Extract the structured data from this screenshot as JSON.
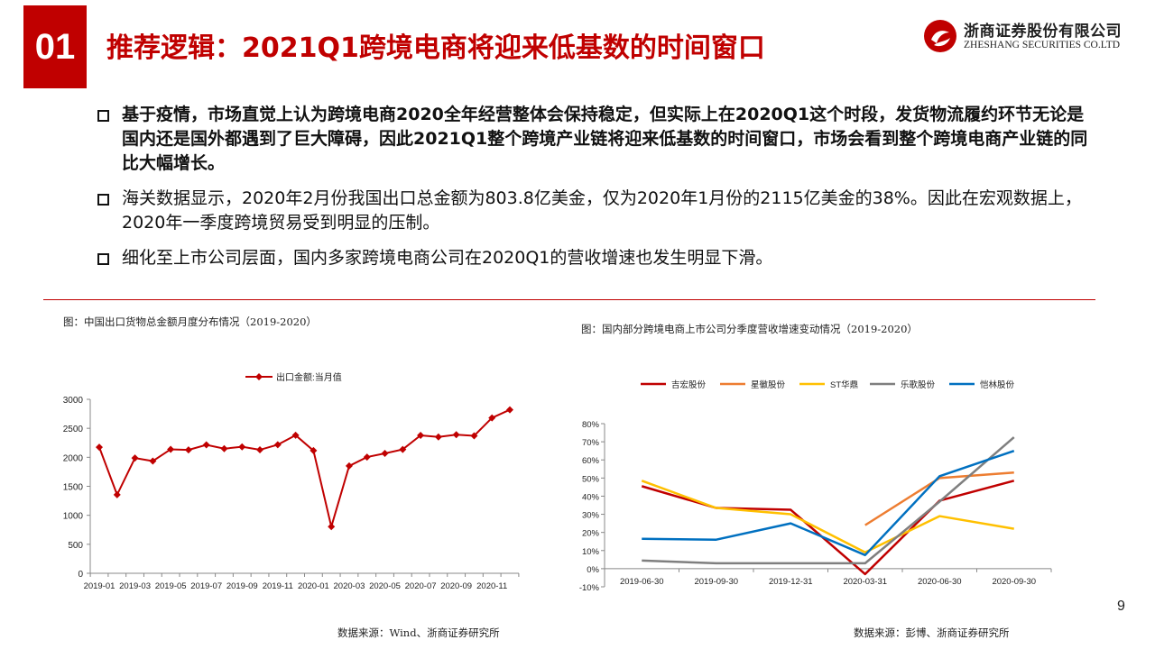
{
  "header": {
    "section_number": "01",
    "title": "推荐逻辑：2021Q1跨境电商将迎来低基数的时间窗口",
    "logo_cn": "浙商证券股份有限公司",
    "logo_en": "ZHESHANG SECURITIES CO.LTD",
    "brand_color": "#c00000"
  },
  "bullets": [
    {
      "text": "基于疫情，市场直觉上认为跨境电商2020全年经营整体会保持稳定，但实际上在2020Q1这个时段，发货物流履约环节无论是国内还是国外都遇到了巨大障碍，因此2021Q1整个跨境产业链将迎来低基数的时间窗口，市场会看到整个跨境电商产业链的同比大幅增长。",
      "bold": true
    },
    {
      "text": "海关数据显示，2020年2月份我国出口总金额为803.8亿美金，仅为2020年1月份的2115亿美金的38%。因此在宏观数据上，2020年一季度跨境贸易受到明显的压制。",
      "bold": false
    },
    {
      "text": "细化至上市公司层面，国内多家跨境电商公司在2020Q1的营收增速也发生明显下滑。",
      "bold": false
    }
  ],
  "figures": {
    "left_title": "图：中国出口货物总金额月度分布情况（2019-2020）",
    "left_source": "数据来源：Wind、浙商证券研究所",
    "right_title": "图：国内部分跨境电商上市公司分季度营收增速变动情况（2019-2020）",
    "right_source": "数据来源：彭博、浙商证券研究所"
  },
  "page_number": "9",
  "chart_data": [
    {
      "type": "line",
      "legend_position": "top",
      "grid": false,
      "x": [
        "2019-01",
        "2019-02",
        "2019-03",
        "2019-04",
        "2019-05",
        "2019-06",
        "2019-07",
        "2019-08",
        "2019-09",
        "2019-10",
        "2019-11",
        "2019-12",
        "2020-01",
        "2020-02",
        "2020-03",
        "2020-04",
        "2020-05",
        "2020-06",
        "2020-07",
        "2020-08",
        "2020-09",
        "2020-10",
        "2020-11",
        "2020-12"
      ],
      "x_tick_labels": [
        "2019-01",
        "2019-03",
        "2019-05",
        "2019-07",
        "2019-09",
        "2019-11",
        "2020-01",
        "2020-03",
        "2020-05",
        "2020-07",
        "2020-09",
        "2020-11"
      ],
      "y_ticks": [
        "0",
        "500",
        "1000",
        "1500",
        "2000",
        "2500",
        "3000"
      ],
      "ylim": [
        0,
        3000
      ],
      "series": [
        {
          "name": "出口金额:当月值",
          "color": "#c00000",
          "values": [
            2174,
            1354,
            1987,
            1935,
            2138,
            2128,
            2215,
            2149,
            2181,
            2129,
            2217,
            2380,
            2115,
            804,
            1851,
            2004,
            2067,
            2136,
            2378,
            2352,
            2390,
            2371,
            2680,
            2820
          ]
        }
      ]
    },
    {
      "type": "line",
      "legend_position": "top",
      "grid": false,
      "x": [
        "2019-06-30",
        "2019-09-30",
        "2019-12-31",
        "2020-03-31",
        "2020-06-30",
        "2020-09-30"
      ],
      "y_ticks": [
        "-10%",
        "0%",
        "10%",
        "20%",
        "30%",
        "40%",
        "50%",
        "60%",
        "70%",
        "80%"
      ],
      "ylim": [
        -0.1,
        0.8
      ],
      "series": [
        {
          "name": "吉宏股份",
          "color": "#c00000",
          "values": [
            0.455,
            0.335,
            0.325,
            -0.03,
            0.375,
            0.485
          ]
        },
        {
          "name": "星徽股份",
          "color": "#ed7d31",
          "values": [
            null,
            null,
            null,
            0.24,
            0.5,
            0.53
          ]
        },
        {
          "name": "ST华鼎",
          "color": "#ffc000",
          "values": [
            0.485,
            0.335,
            0.3,
            0.09,
            0.29,
            0.22
          ]
        },
        {
          "name": "乐歌股份",
          "color": "#7f7f7f",
          "values": [
            0.045,
            0.03,
            0.03,
            0.03,
            0.37,
            0.725
          ]
        },
        {
          "name": "恺林股份",
          "color": "#0070c0",
          "values": [
            0.165,
            0.16,
            0.25,
            0.075,
            0.51,
            0.65
          ]
        }
      ]
    }
  ]
}
